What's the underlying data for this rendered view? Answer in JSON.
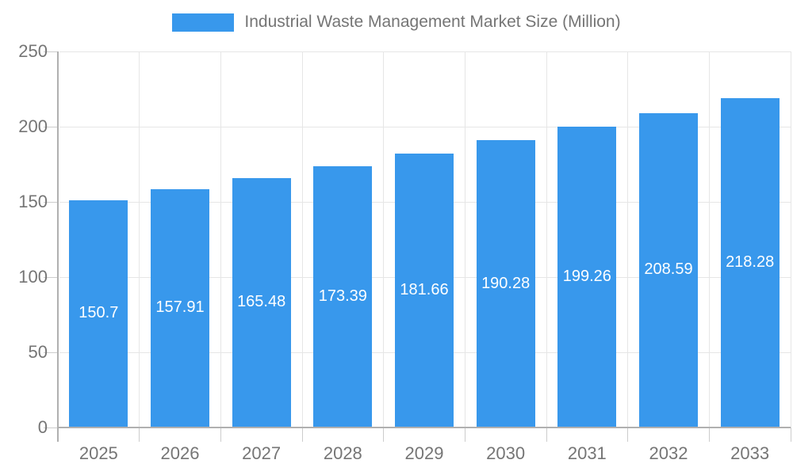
{
  "chart_data": {
    "type": "bar",
    "title": "",
    "legend": "Industrial Waste Management Market Size (Million)",
    "legend_position": "top",
    "categories": [
      "2025",
      "2026",
      "2027",
      "2028",
      "2029",
      "2030",
      "2031",
      "2032",
      "2033"
    ],
    "values": [
      150.7,
      157.91,
      165.48,
      173.39,
      181.66,
      190.28,
      199.26,
      208.59,
      218.28
    ],
    "value_labels": [
      "150.7",
      "157.91",
      "165.48",
      "173.39",
      "181.66",
      "190.28",
      "199.26",
      "208.59",
      "218.28"
    ],
    "xlabel": "",
    "ylabel": "",
    "ylim": [
      0,
      250
    ],
    "yticks": [
      0,
      50,
      100,
      150,
      200,
      250
    ],
    "grid": true,
    "colors": {
      "bar": "#3898EC",
      "axis_text": "#757575",
      "bar_label_text": "#ffffff",
      "grid_line": "#e6e6e6",
      "axis_line": "#b0b0b0",
      "tick_line": "#cccccc",
      "background": "#ffffff"
    }
  }
}
